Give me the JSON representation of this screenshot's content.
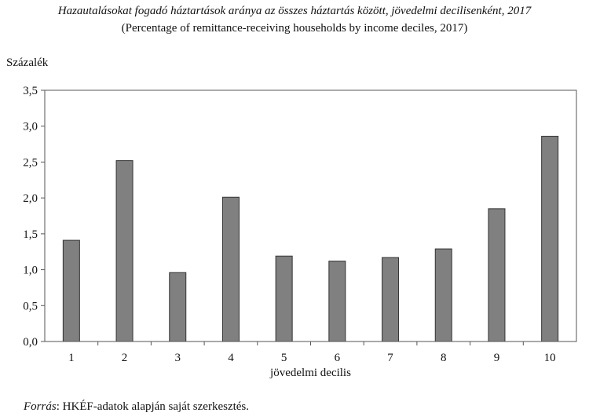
{
  "chart_data": {
    "type": "bar",
    "title": "Hazautalásokat fogadó háztartások aránya az összes háztartás között, jövedelmi decilisenként, 2017",
    "subtitle": "(Percentage of remittance-receiving households by income deciles, 2017)",
    "ylabel": "Százalék",
    "xlabel": "jövedelmi decilis",
    "categories": [
      "1",
      "2",
      "3",
      "4",
      "5",
      "6",
      "7",
      "8",
      "9",
      "10"
    ],
    "values": [
      1.41,
      2.52,
      0.96,
      2.01,
      1.19,
      1.12,
      1.17,
      1.29,
      1.85,
      2.86
    ],
    "ylim": [
      0,
      3.5
    ],
    "yticks": [
      "0,0",
      "0,5",
      "1,0",
      "1,5",
      "2,0",
      "2,5",
      "3,0",
      "3,5"
    ],
    "bar_color": "#808080",
    "grid": false
  },
  "source": {
    "label": "Forrás",
    "text": ": HKÉF-adatok alapján saját szerkesztés."
  }
}
